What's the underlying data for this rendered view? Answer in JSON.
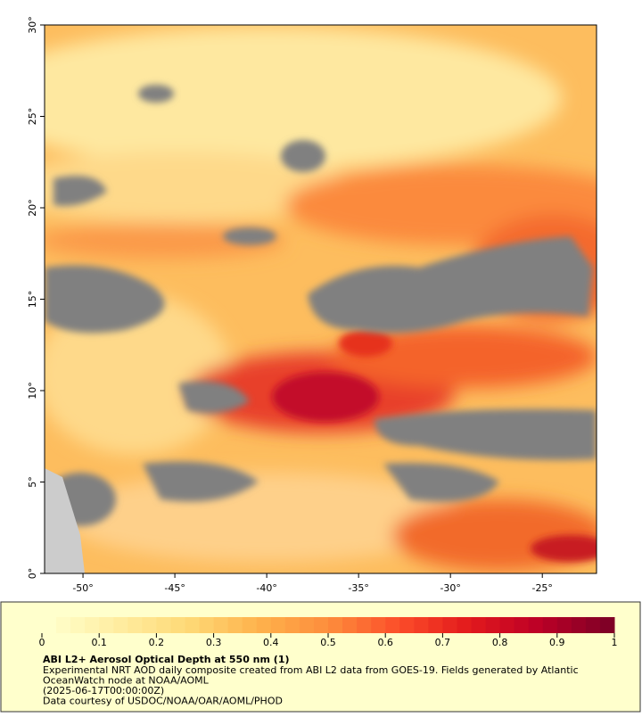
{
  "map": {
    "xlim": [
      -52.09,
      -22.05
    ],
    "ylim": [
      0,
      30
    ],
    "xticks": [
      {
        "value": -50,
        "label": "-50°"
      },
      {
        "value": -45,
        "label": "-45°"
      },
      {
        "value": -40,
        "label": "-40°"
      },
      {
        "value": -35,
        "label": "-35°"
      },
      {
        "value": -30,
        "label": "-30°"
      },
      {
        "value": -25,
        "label": "-25°"
      }
    ],
    "yticks": [
      {
        "value": 0,
        "label": "0°"
      },
      {
        "value": 5,
        "label": "5°"
      },
      {
        "value": 10,
        "label": "10°"
      },
      {
        "value": 15,
        "label": "15°"
      },
      {
        "value": 20,
        "label": "20°"
      },
      {
        "value": 25,
        "label": "25°"
      },
      {
        "value": 30,
        "label": "30°"
      }
    ]
  },
  "colorbar": {
    "lim": [
      0,
      1
    ],
    "ticks": [
      0,
      0.1,
      0.2,
      0.3,
      0.4,
      0.5,
      0.6,
      0.7,
      0.8,
      0.9,
      1
    ],
    "colors": [
      "#ffffcc",
      "#ffeda0",
      "#fed976",
      "#feb24c",
      "#fd8d3c",
      "#fc4e2a",
      "#e31a1c",
      "#bd0026",
      "#800026"
    ]
  },
  "legend": {
    "title": "ABI L2+ Aerosol Optical Depth at 550 nm (1)",
    "lines": [
      "Experimental NRT AOD daily composite created from ABI L2 data from GOES-19. Fields generated by Atlantic",
      "OceanWatch node at NOAA/AOML",
      "(2025-06-17T00:00:00Z)",
      "Data courtesy of USDOC/NOAA/OAR/AOML/PHOD"
    ]
  }
}
